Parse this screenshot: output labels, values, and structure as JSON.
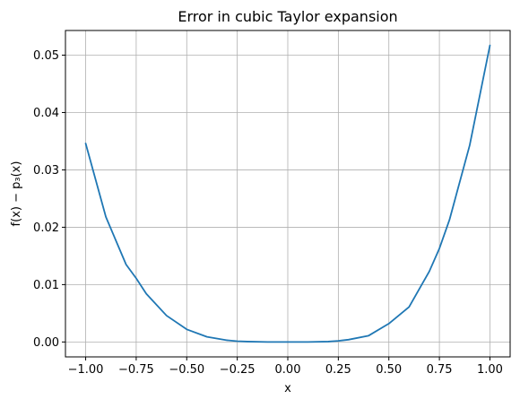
{
  "chart_data": {
    "type": "line",
    "title": "Error in cubic Taylor expansion",
    "xlabel": "x",
    "ylabel": "f(x) − p₃(x)",
    "xlim": [
      -1.1,
      1.1
    ],
    "ylim": [
      -0.0026,
      0.0543
    ],
    "grid": true,
    "x_ticks": [
      -1.0,
      -0.75,
      -0.5,
      -0.25,
      0.0,
      0.25,
      0.5,
      0.75,
      1.0
    ],
    "x_tick_labels": [
      "−1.00",
      "−0.75",
      "−0.50",
      "−0.25",
      "0.00",
      "0.25",
      "0.50",
      "0.75",
      "1.00"
    ],
    "y_ticks": [
      0.0,
      0.01,
      0.02,
      0.03,
      0.04,
      0.05
    ],
    "y_tick_labels": [
      "0.00",
      "0.01",
      "0.02",
      "0.03",
      "0.04",
      "0.05"
    ],
    "series": [
      {
        "color": "#1f77b4",
        "x": [
          -1.0,
          -0.9,
          -0.8,
          -0.75,
          -0.7,
          -0.6,
          -0.5,
          -0.4,
          -0.3,
          -0.25,
          -0.2,
          -0.1,
          0.0,
          0.1,
          0.2,
          0.25,
          0.3,
          0.4,
          0.5,
          0.6,
          0.7,
          0.75,
          0.8,
          0.9,
          1.0
        ],
        "y": [
          0.0346,
          0.0218,
          0.0135,
          0.0111,
          0.0084,
          0.0046,
          0.0022,
          0.0009,
          0.0003,
          0.00014,
          7e-05,
          0.0,
          0.0,
          0.0,
          7e-05,
          0.0002,
          0.0004,
          0.0011,
          0.0032,
          0.0061,
          0.0123,
          0.0163,
          0.0213,
          0.0343,
          0.0517
        ]
      }
    ]
  }
}
